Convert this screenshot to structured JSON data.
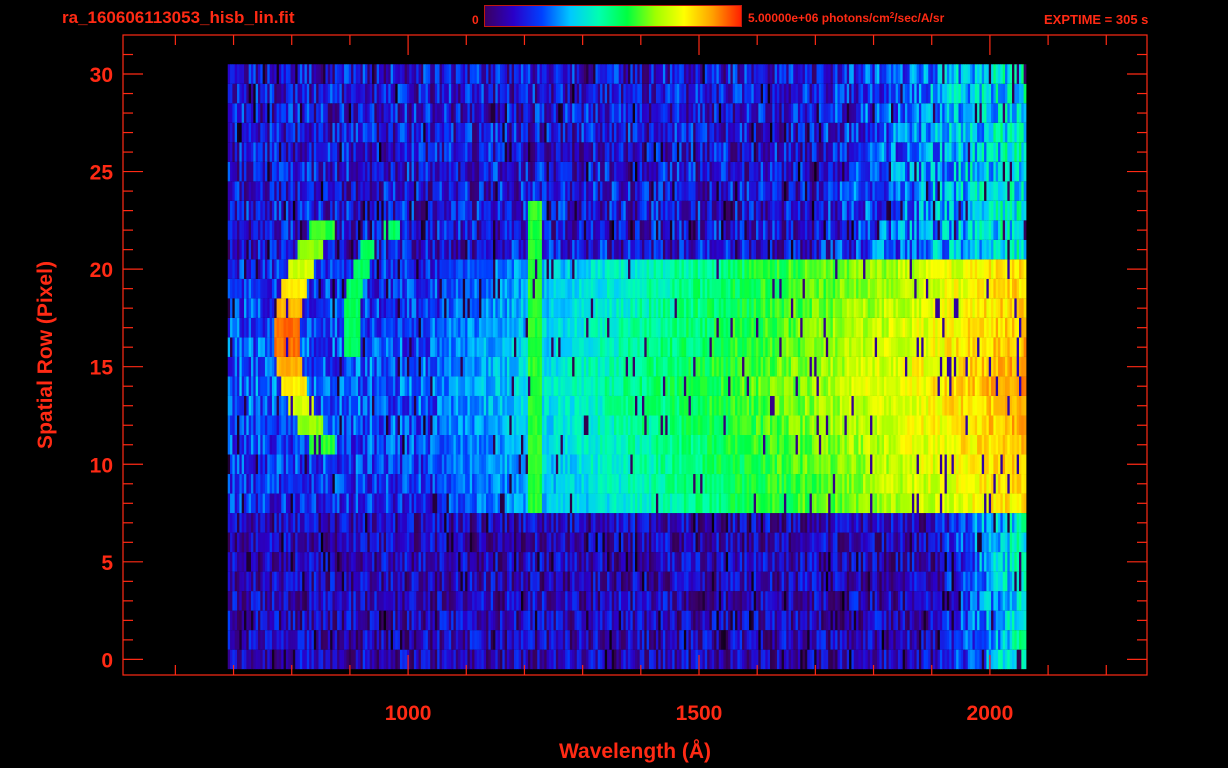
{
  "header": {
    "filename": "ra_160606113053_hisb_lin.fit",
    "colorbar_min": "0",
    "colorbar_max_prefix": "5.00000e+06 photons/cm",
    "colorbar_max_sup": "2",
    "colorbar_max_suffix": "/sec/A/sr",
    "exptime": "EXPTIME = 305 s"
  },
  "colors": {
    "axis": "#ff2a14",
    "background": "#000000",
    "colormap": [
      "#000000",
      "#3a0060",
      "#2a00c8",
      "#0040ff",
      "#00c8ff",
      "#00ffb0",
      "#00ff40",
      "#a0ff00",
      "#ffff00",
      "#ffa000",
      "#ff2000"
    ]
  },
  "chart_data": {
    "type": "heatmap",
    "title": "",
    "xlabel": "Wavelength (Å)",
    "ylabel": "Spatial Row (Pixel)",
    "xlim": [
      510,
      2270
    ],
    "ylim": [
      -0.8,
      32
    ],
    "x_ticks": [
      1000,
      1500,
      2000
    ],
    "x_minor_ticks": [
      600,
      700,
      800,
      900,
      1100,
      1200,
      1300,
      1400,
      1600,
      1700,
      1800,
      1900,
      2100,
      2200
    ],
    "y_ticks": [
      0,
      5,
      10,
      15,
      20,
      25,
      30
    ],
    "y_minor_step": 1,
    "x_extent": [
      690,
      2060
    ],
    "rows": 31,
    "colorbar": {
      "min": 0,
      "max": 5000000,
      "unit": "photons/cm^2/sec/A/sr"
    },
    "features": [
      {
        "name": "slit-bright-band",
        "rows": [
          8,
          20
        ]
      },
      {
        "name": "emission-line",
        "x": 1216,
        "rows": [
          8,
          23
        ]
      },
      {
        "name": "arc",
        "x": [
          790,
          970
        ],
        "rows": [
          11,
          22
        ]
      }
    ],
    "grid": false
  }
}
